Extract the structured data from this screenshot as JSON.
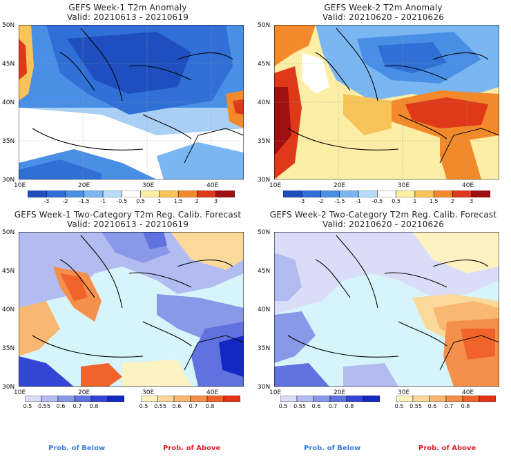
{
  "panels": [
    {
      "title": "GEFS Week-1 T2m Anomaly",
      "valid": "Valid: 20210613 - 20210619"
    },
    {
      "title": "GEFS Week-2 T2m Anomaly",
      "valid": "Valid: 20210620 - 20210626"
    },
    {
      "title": "GEFS Week-1 Two-Category T2m Reg. Calib. Forecast",
      "valid": "Valid: 20210613 - 20210619"
    },
    {
      "title": "GEFS Week-2 Two-Category T2m Reg. Calib. Forecast",
      "valid": "Valid: 20210620 - 20210626"
    }
  ],
  "axes": {
    "lat_labels": [
      "50N",
      "45N",
      "40N",
      "35N",
      "30N"
    ],
    "lon_labels": [
      "10E",
      "20E",
      "30E",
      "40E"
    ]
  },
  "anomaly_scale": {
    "labels": [
      "-3",
      "-2",
      "-1.5",
      "-1",
      "-0.5",
      "0.5",
      "1",
      "1.5",
      "2",
      "3"
    ],
    "colors": [
      "#1f4fbf",
      "#2f6fd6",
      "#4a8fe6",
      "#7ab6f2",
      "#b8dcf7",
      "#ffffff",
      "#fdeea5",
      "#f8c45a",
      "#f28a2c",
      "#e0391a",
      "#a01010"
    ]
  },
  "prob_scale": {
    "below_labels": [
      "0.5",
      "0.55",
      "0.6",
      "0.7",
      "0.8"
    ],
    "above_labels": [
      "0.5",
      "0.55",
      "0.6",
      "0.7",
      "0.8"
    ],
    "below_colors": [
      "#d9ddf7",
      "#b3bcf0",
      "#8a98e8",
      "#5f72e0",
      "#3346d6",
      "#1428c4"
    ],
    "above_colors": [
      "#fdf2c2",
      "#fbd99a",
      "#f8b872",
      "#f58f4c",
      "#f0642a",
      "#e53412"
    ]
  },
  "legend": {
    "below": "Prob. of Below",
    "above": "Prob. of Above",
    "below_color": "#3a7de0",
    "above_color": "#e0202a"
  },
  "colors": {
    "sea": "#d8f4fb",
    "coast": "#000000"
  }
}
